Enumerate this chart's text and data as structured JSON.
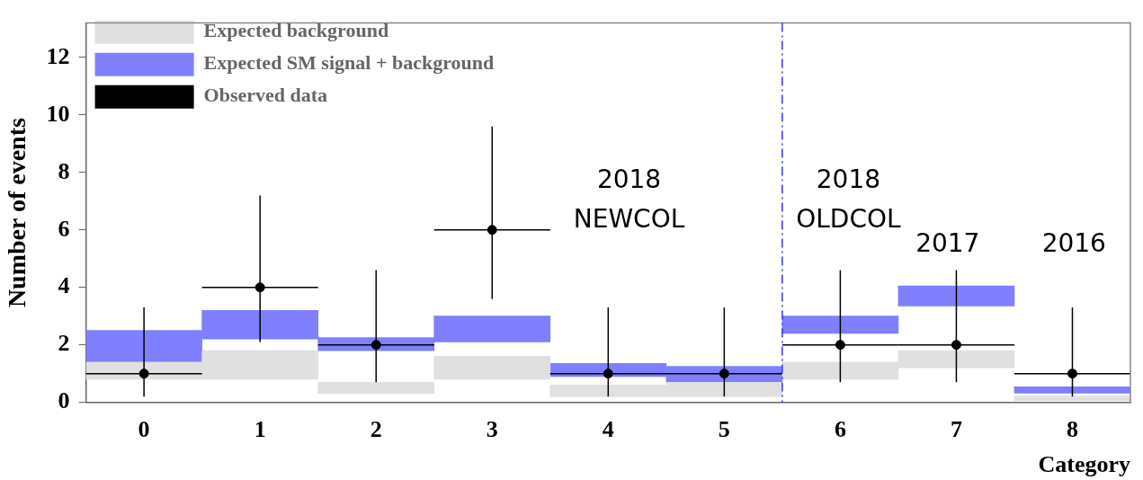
{
  "chart_data": {
    "type": "bar",
    "xlabel": "Category",
    "ylabel": "Number of events",
    "x": [
      0,
      1,
      2,
      3,
      4,
      5,
      6,
      7,
      8
    ],
    "xlim": [
      -0.5,
      8.5
    ],
    "xticks": [
      0,
      1,
      2,
      3,
      4,
      5,
      6,
      7,
      8
    ],
    "ylim": [
      0,
      13.2
    ],
    "yticks": [
      0,
      2,
      4,
      6,
      8,
      10,
      12
    ],
    "series": [
      {
        "name": "Expected background",
        "color": "#e0e0e0",
        "base": [
          0.8,
          0.8,
          0.3,
          0.8,
          0.2,
          0.2,
          0.8,
          1.2,
          0.06
        ],
        "values": [
          0.6,
          1.0,
          0.4,
          0.8,
          0.4,
          0.5,
          0.6,
          0.6,
          0.16
        ]
      },
      {
        "name": "Expected SM signal + background",
        "color": "#7f7fff",
        "base": [
          1.4,
          2.2,
          1.8,
          2.1,
          0.9,
          0.7,
          2.4,
          3.35,
          0.32
        ],
        "values": [
          1.1,
          1.0,
          0.45,
          0.9,
          0.45,
          0.55,
          0.6,
          0.7,
          0.22
        ]
      },
      {
        "name": "Observed data",
        "type": "scatter",
        "color": "#000000",
        "marker": "circle",
        "values": [
          1,
          4,
          2,
          6,
          1,
          1,
          2,
          2,
          1
        ],
        "errors": [
          [
            0.2,
            3.3
          ],
          [
            2.1,
            7.2
          ],
          [
            0.7,
            4.6
          ],
          [
            3.6,
            9.6
          ],
          [
            0.2,
            3.3
          ],
          [
            0.2,
            3.3
          ],
          [
            0.7,
            4.6
          ],
          [
            0.7,
            4.6
          ],
          [
            0.2,
            3.3
          ]
        ],
        "xerrors": [
          0.5,
          0.5,
          0.5,
          0.5,
          0.5,
          0.5,
          0.5,
          0.5,
          0.5
        ]
      }
    ],
    "ref_lines": [
      {
        "axis": "x",
        "value": 5.5,
        "color": "#3333ff",
        "line_style": "dashed"
      }
    ],
    "annotations": [
      "2018\nNEWCOL",
      "2018\nOLDCOL",
      "2017",
      "2016"
    ],
    "legend": "top left",
    "grid": false
  }
}
